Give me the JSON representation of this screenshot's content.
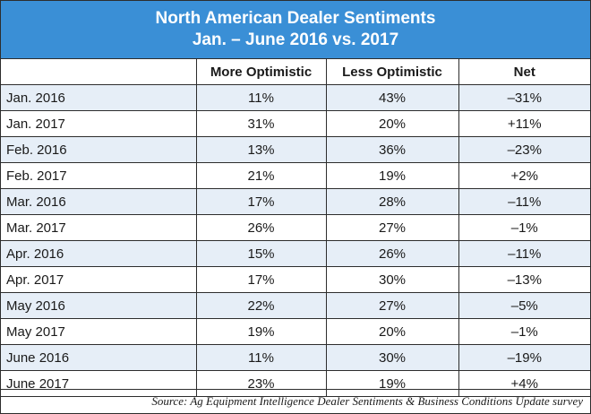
{
  "chart_data": {
    "type": "table",
    "title_line1": "North American Dealer Sentiments",
    "title_line2": "Jan. – June 2016 vs. 2017",
    "columns": [
      "",
      "More Optimistic",
      "Less Optimistic",
      "Net"
    ],
    "rows": [
      [
        "Jan. 2016",
        "11%",
        "43%",
        "–31%"
      ],
      [
        "Jan. 2017",
        "31%",
        "20%",
        "+11%"
      ],
      [
        "Feb. 2016",
        "13%",
        "36%",
        "–23%"
      ],
      [
        "Feb. 2017",
        "21%",
        "19%",
        "+2%"
      ],
      [
        "Mar. 2016",
        "17%",
        "28%",
        "–11%"
      ],
      [
        "Mar. 2017",
        "26%",
        "27%",
        "–1%"
      ],
      [
        "Apr. 2016",
        "15%",
        "26%",
        "–11%"
      ],
      [
        "Apr. 2017",
        "17%",
        "30%",
        "–13%"
      ],
      [
        "May 2016",
        "22%",
        "27%",
        "–5%"
      ],
      [
        "May 2017",
        "19%",
        "20%",
        "–1%"
      ],
      [
        "June 2016",
        "11%",
        "30%",
        "–19%"
      ],
      [
        "June 2017",
        "23%",
        "19%",
        "+4%"
      ]
    ],
    "source": "Source: Ag Equipment Intelligence Dealer Sentiments & Business Conditions Update survey"
  },
  "colors": {
    "title_background": "#3a8fd6",
    "title_text": "#ffffff",
    "shaded_row": "#e6eef7",
    "border": "#2d2d2d"
  }
}
